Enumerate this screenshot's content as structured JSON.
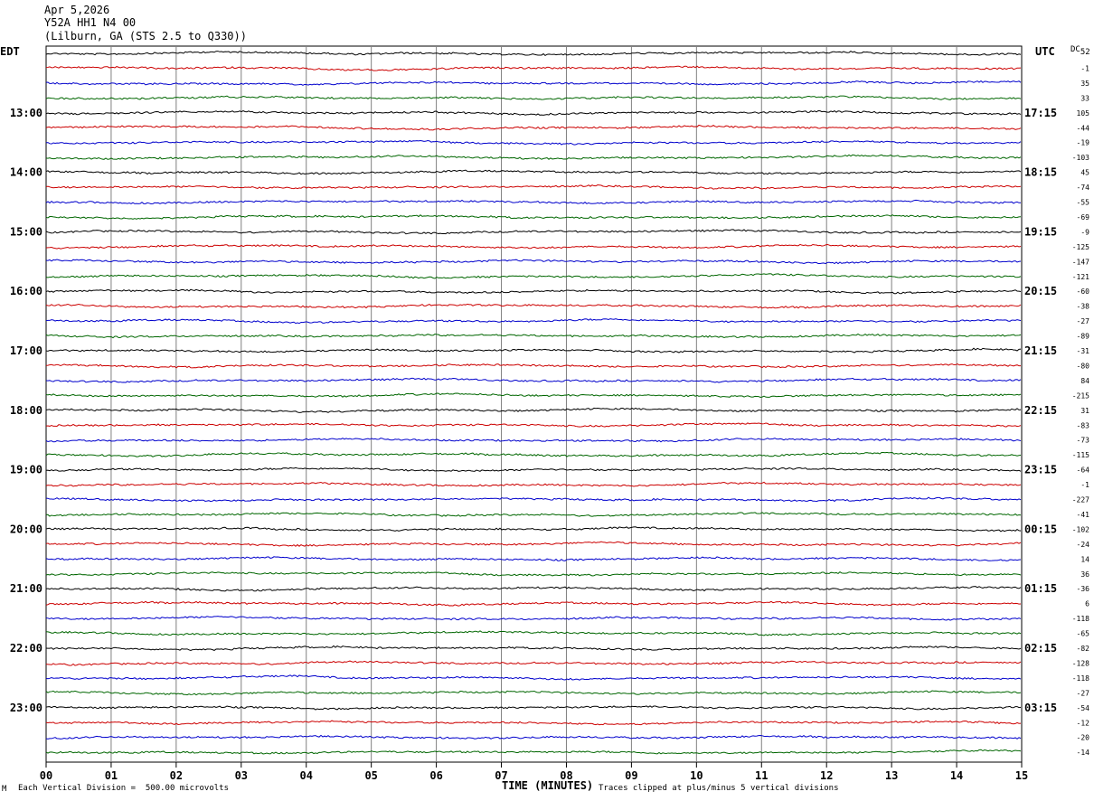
{
  "header": {
    "date": "Apr 5,2026",
    "station": "Y52A HH1 N4 00",
    "location": "(Lilburn, GA (STS 2.5 to Q330))"
  },
  "left_tz": "EDT",
  "right_tz": "UTC",
  "dc_label": "DC",
  "dc_label_sub": "52",
  "footer": {
    "scale_note": "Each Vertical Division =  500.00 microvolts",
    "clip_note": "Traces clipped at plus/minus 5 vertical divisions",
    "mark": "M"
  },
  "colors": {
    "trace_cycle": [
      "#000000",
      "#cc0000",
      "#0000cc",
      "#006600"
    ],
    "grid": "#808080"
  },
  "chart_data": {
    "type": "line",
    "title": "",
    "xlabel": "TIME (MINUTES)",
    "xlim": [
      0,
      15
    ],
    "x_ticks": [
      "00",
      "01",
      "02",
      "03",
      "04",
      "05",
      "06",
      "07",
      "08",
      "09",
      "10",
      "11",
      "12",
      "13",
      "14",
      "15"
    ],
    "left_hour_labels": [
      "13:00",
      "14:00",
      "15:00",
      "16:00",
      "17:00",
      "18:00",
      "19:00",
      "20:00",
      "21:00",
      "22:00",
      "23:00"
    ],
    "right_hour_labels": [
      "17:15",
      "18:15",
      "19:15",
      "20:15",
      "21:15",
      "22:15",
      "23:15",
      "00:15",
      "01:15",
      "02:15",
      "03:15"
    ],
    "traces_per_hour": 4,
    "first_labeled_trace": 4,
    "dc_offsets": [
      "-1",
      "35",
      "33",
      "105",
      "-44",
      "-19",
      "-103",
      "45",
      "-74",
      "-55",
      "-69",
      "-9",
      "-125",
      "-147",
      "-121",
      "-60",
      "-38",
      "-27",
      "-89",
      "-31",
      "-80",
      "84",
      "-215",
      "31",
      "-83",
      "-73",
      "-115",
      "-64",
      "-1",
      "-227",
      "-41",
      "-102",
      "-24",
      "14",
      "36",
      "-36",
      "6",
      "-118",
      "-65",
      "-82",
      "-128",
      "-118",
      "-27",
      "-54",
      "-12",
      "-20",
      "-14"
    ]
  }
}
